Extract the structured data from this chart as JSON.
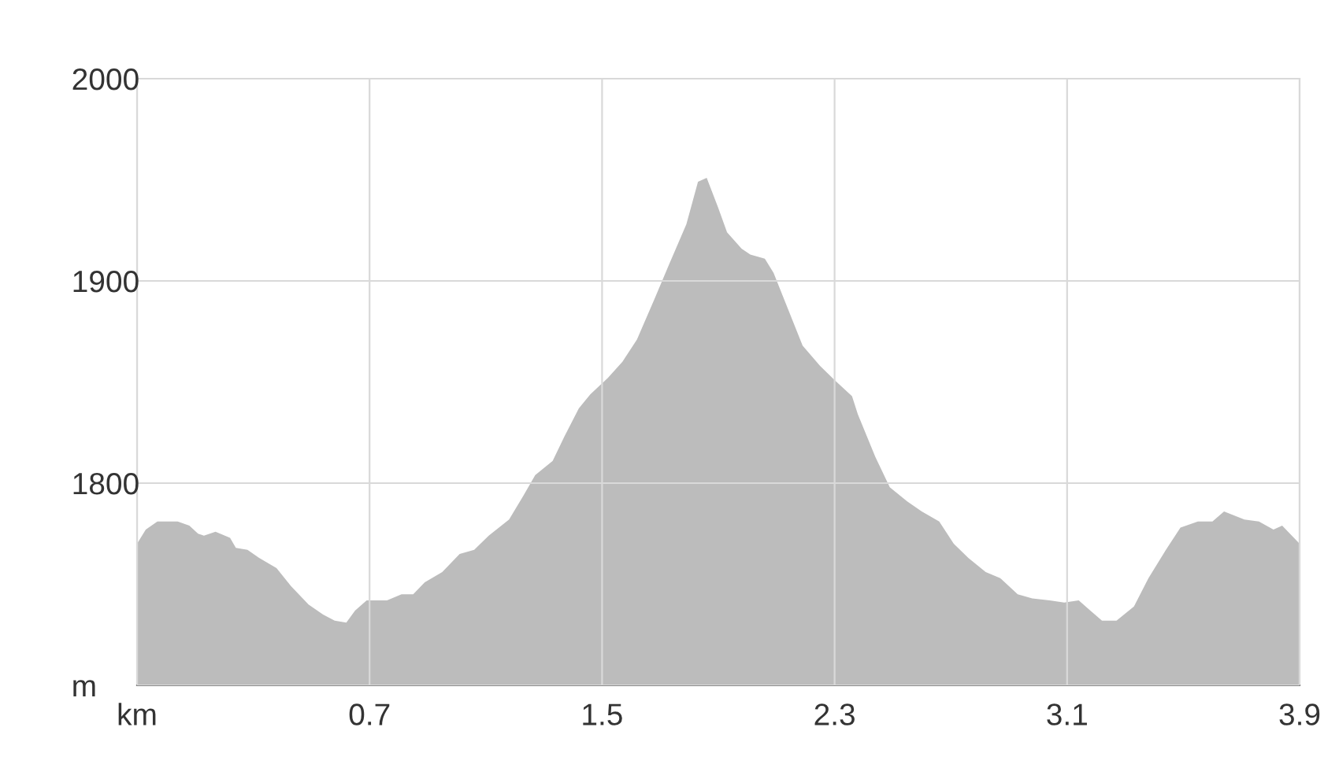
{
  "chart_data": {
    "type": "area",
    "x": [
      -0.1,
      -0.07,
      -0.03,
      0.04,
      0.08,
      0.11,
      0.13,
      0.17,
      0.22,
      0.24,
      0.28,
      0.32,
      0.38,
      0.43,
      0.49,
      0.54,
      0.58,
      0.62,
      0.65,
      0.69,
      0.76,
      0.81,
      0.85,
      0.89,
      0.95,
      1.01,
      1.06,
      1.11,
      1.18,
      1.23,
      1.27,
      1.33,
      1.37,
      1.42,
      1.46,
      1.52,
      1.57,
      1.62,
      1.68,
      1.73,
      1.79,
      1.83,
      1.86,
      1.9,
      1.93,
      1.98,
      2.01,
      2.06,
      2.09,
      2.14,
      2.19,
      2.25,
      2.3,
      2.36,
      2.38,
      2.44,
      2.49,
      2.55,
      2.6,
      2.66,
      2.71,
      2.76,
      2.82,
      2.87,
      2.93,
      2.98,
      3.04,
      3.09,
      3.14,
      3.18,
      3.22,
      3.27,
      3.33,
      3.38,
      3.44,
      3.49,
      3.55,
      3.6,
      3.64,
      3.71,
      3.76,
      3.81,
      3.84,
      3.9
    ],
    "series": [
      {
        "color": "#bcbcbc",
        "values": [
          1770,
          1777,
          1781,
          1781,
          1779,
          1775,
          1774,
          1776,
          1773,
          1768,
          1767,
          1763,
          1758,
          1749,
          1740,
          1735,
          1732,
          1731,
          1737,
          1742,
          1742,
          1745,
          1745,
          1751,
          1756,
          1765,
          1767,
          1774,
          1782,
          1794,
          1804,
          1811,
          1823,
          1837,
          1844,
          1852,
          1860,
          1871,
          1891,
          1908,
          1928,
          1949,
          1951,
          1936,
          1924,
          1916,
          1913,
          1911,
          1904,
          1886,
          1868,
          1858,
          1851,
          1843,
          1834,
          1813,
          1798,
          1791,
          1786,
          1781,
          1770,
          1763,
          1756,
          1753,
          1745,
          1743,
          1742,
          1741,
          1742,
          1737,
          1732,
          1732,
          1739,
          1753,
          1767,
          1778,
          1781,
          1781,
          1786,
          1782,
          1781,
          1777,
          1779,
          1770
        ]
      }
    ],
    "xlim": [
      -0.1,
      3.9
    ],
    "ylim": [
      1700,
      2000
    ],
    "xticks": [
      {
        "value": -0.1,
        "label": "km"
      },
      0.7,
      1.5,
      2.3,
      3.1,
      3.9
    ],
    "yticks": [
      {
        "value": 1700,
        "label": "m"
      },
      1800,
      1900,
      2000
    ],
    "grid": true
  }
}
